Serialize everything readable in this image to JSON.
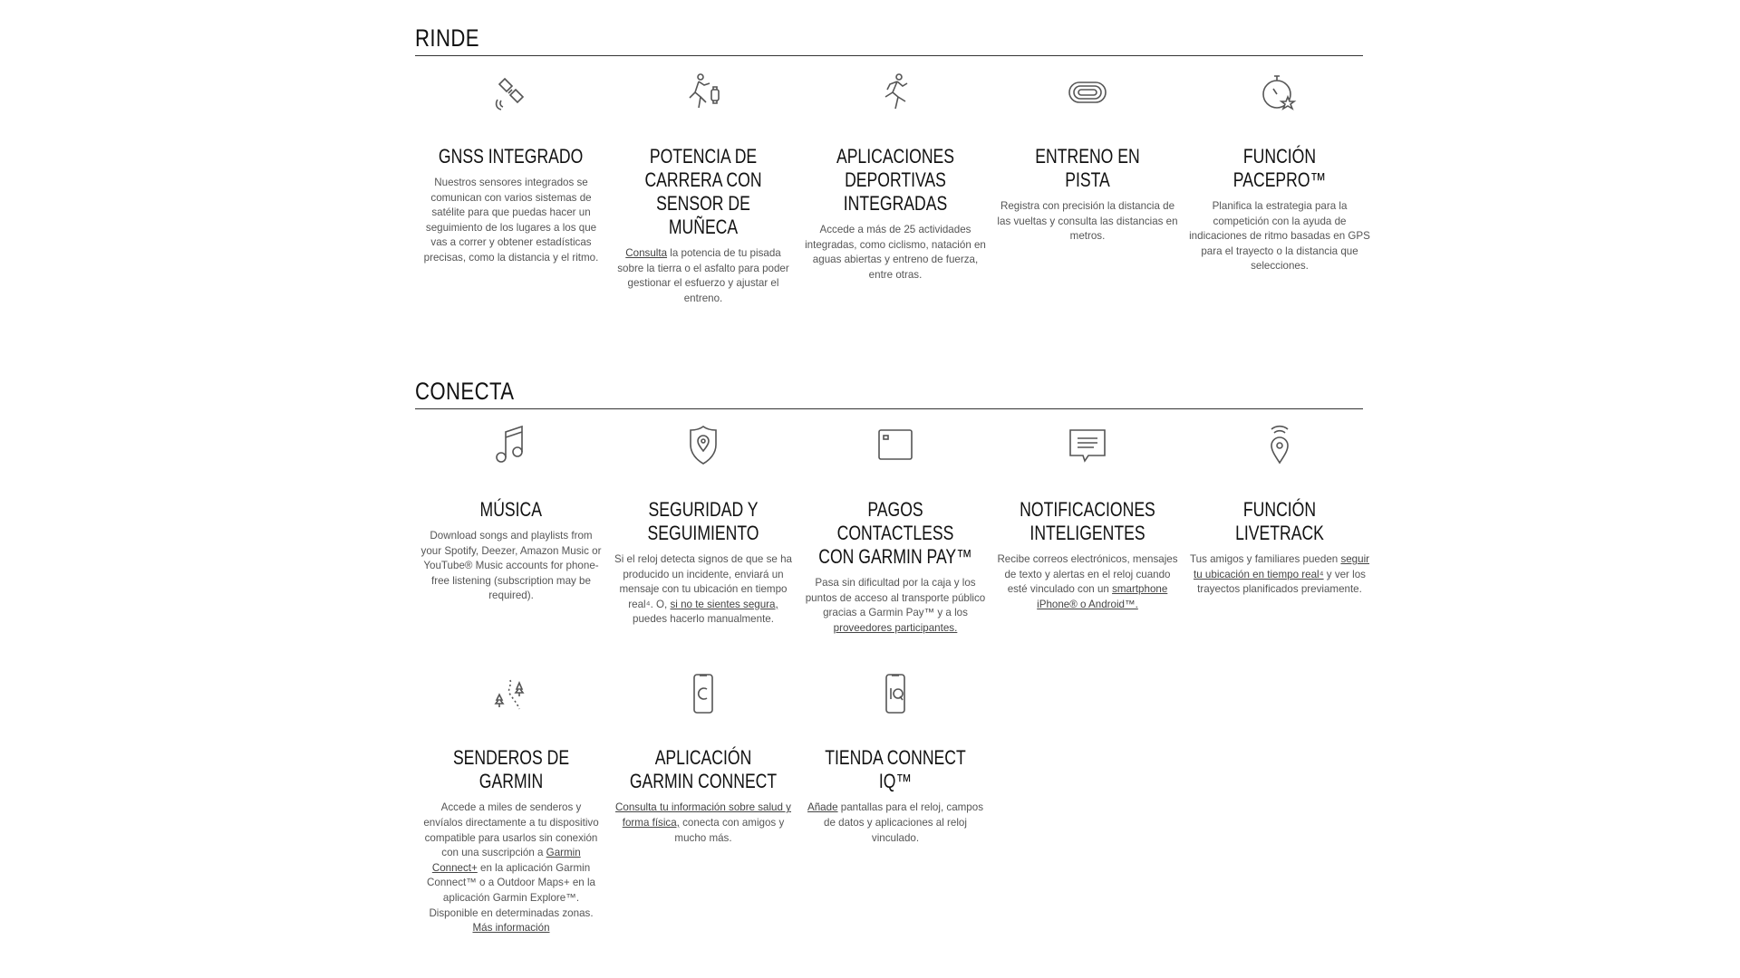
{
  "sections": [
    {
      "title": "RINDE",
      "features": [
        {
          "icon": "satellite-icon",
          "title": "GNSS INTEGRADO",
          "body": [
            {
              "t": "Nuestros sensores integrados se comunican con varios sistemas de satélite para que puedas hacer un seguimiento de los lugares a los que vas a correr y obtener estadísticas precisas, como la distancia y el ritmo."
            }
          ]
        },
        {
          "icon": "runner-watch-icon",
          "title": "POTENCIA DE CARRERA CON SENSOR DE MUÑECA",
          "body": [
            {
              "t": "Consulta",
              "link": true
            },
            {
              "t": " la potencia de tu pisada sobre la tierra o el asfalto para poder gestionar el esfuerzo y ajustar el entreno."
            }
          ]
        },
        {
          "icon": "runner-icon",
          "title": "APLICACIONES DEPORTIVAS INTEGRADAS",
          "body": [
            {
              "t": "Accede a más de 25 actividades integradas, como ciclismo, natación en aguas abiertas y entreno de fuerza, entre otras."
            }
          ]
        },
        {
          "icon": "track-icon",
          "title": "ENTRENO EN PISTA",
          "body": [
            {
              "t": "Registra con precisión la distancia de las vueltas y consulta las distancias en metros."
            }
          ]
        },
        {
          "icon": "stopwatch-star-icon",
          "title": "FUNCIÓN PACEPRO™",
          "body": [
            {
              "t": "Planifica la estrategia para la competición con la ayuda de indicaciones de ritmo basadas en GPS para el trayecto o la distancia que selecciones."
            }
          ]
        }
      ]
    },
    {
      "title": "CONECTA",
      "features": [
        {
          "icon": "music-note-icon",
          "title": "MÚSICA",
          "body": [
            {
              "t": "Download songs and playlists from your Spotify, Deezer, Amazon Music or YouTube® Music accounts for phone-free listening (subscription may be required)."
            }
          ]
        },
        {
          "icon": "shield-location-icon",
          "title": "SEGURIDAD Y SEGUIMIENTO",
          "body": [
            {
              "t": "Si el reloj detecta signos de que se ha producido un incidente, enviará un mensaje con tu ubicación en tiempo real⁴. O, "
            },
            {
              "t": "si no te sientes segura,",
              "link": true
            },
            {
              "t": " puedes hacerlo manualmente."
            }
          ]
        },
        {
          "icon": "card-icon",
          "title": "PAGOS CONTACTLESS CON GARMIN PAY™",
          "body": [
            {
              "t": "Pasa sin dificultad por la caja y los puntos de acceso al transporte público gracias a Garmin Pay™ y a los "
            },
            {
              "t": "proveedores participantes.",
              "link": true
            }
          ]
        },
        {
          "icon": "message-icon",
          "title": "NOTIFICACIONES INTELIGENTES",
          "body": [
            {
              "t": "Recibe correos electrónicos, mensajes de texto y alertas en el reloj cuando esté vinculado con un "
            },
            {
              "t": "smartphone iPhone® o Android™.",
              "link": true
            }
          ]
        },
        {
          "icon": "livetrack-pin-icon",
          "title": "FUNCIÓN LIVETRACK",
          "body": [
            {
              "t": "Tus amigos y familiares pueden "
            },
            {
              "t": "seguir tu ubicación en tiempo real⁴",
              "link": true
            },
            {
              "t": " y ver los trayectos planificados previamente."
            }
          ]
        },
        {
          "icon": "trees-trail-icon",
          "title": "SENDEROS DE GARMIN",
          "body": [
            {
              "t": "Accede a miles de senderos y envíalos directamente a tu dispositivo compatible para usarlos sin conexión con una suscripción a "
            },
            {
              "t": "Garmin Connect+",
              "link": true
            },
            {
              "t": " en la aplicación Garmin Connect™ o a Outdoor Maps+ en la aplicación Garmin Explore™. Disponible en determinadas zonas. "
            },
            {
              "t": "Más información",
              "link": true
            }
          ]
        },
        {
          "icon": "phone-connect-icon",
          "title": "APLICACIÓN GARMIN CONNECT",
          "body": [
            {
              "t": "Consulta tu información sobre salud y forma física,",
              "link": true
            },
            {
              "t": " conecta con amigos y mucho más."
            }
          ]
        },
        {
          "icon": "phone-iq-icon",
          "title": "TIENDA CONNECT IQ™",
          "body": [
            {
              "t": "Añade",
              "link": true
            },
            {
              "t": " pantallas para el reloj, campos de datos y aplicaciones al reloj vinculado."
            }
          ]
        }
      ]
    }
  ]
}
